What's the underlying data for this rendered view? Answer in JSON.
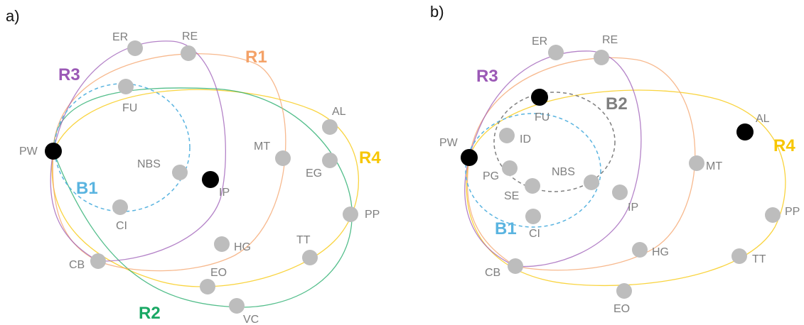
{
  "colors": {
    "R1": "#f4a268",
    "R2": "#19a864",
    "R3": "#9b59b6",
    "R4": "#f7c600",
    "B1": "#5ab4e0",
    "B2": "#7f7f7f",
    "node_default": "#bdbdbd",
    "node_highlight": "#000000",
    "node_label": "#7f7f7f"
  },
  "panel_a": {
    "label": "a)",
    "groups": {
      "R1": "R1",
      "R2": "R2",
      "R3": "R3",
      "R4": "R4",
      "B1": "B1"
    },
    "nodes": [
      "ER",
      "RE",
      "FU",
      "AL",
      "PW",
      "MT",
      "NBS",
      "EG",
      "IP",
      "PP",
      "CI",
      "HG",
      "TT",
      "CB",
      "EO",
      "VC"
    ],
    "highlighted_nodes": [
      "PW",
      "IP"
    ]
  },
  "panel_b": {
    "label": "b)",
    "groups": {
      "R3": "R3",
      "R4": "R4",
      "B1": "B1",
      "B2": "B2"
    },
    "nodes": [
      "ER",
      "RE",
      "FU",
      "ID",
      "AL",
      "PW",
      "MT",
      "PG",
      "NBS",
      "SE",
      "IP",
      "PP",
      "CI",
      "HG",
      "TT",
      "CB",
      "EO"
    ],
    "highlighted_nodes": [
      "PW",
      "FU",
      "AL"
    ]
  }
}
